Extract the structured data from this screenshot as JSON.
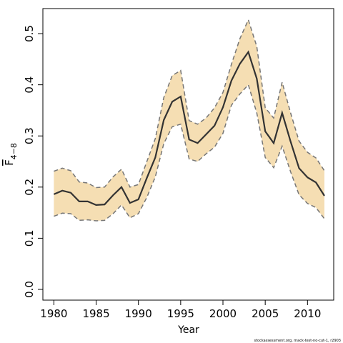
{
  "chart_data": {
    "type": "line",
    "x_label": "Year",
    "y_label": {
      "main": "F",
      "sub": "4−8"
    },
    "footnote": "stockassessment.org, mack-test-no-cut-1, r2903",
    "x": [
      1980,
      1981,
      1982,
      1983,
      1984,
      1985,
      1986,
      1987,
      1988,
      1989,
      1990,
      1991,
      1992,
      1993,
      1994,
      1995,
      1996,
      1997,
      1998,
      1999,
      2000,
      2001,
      2002,
      2003,
      2004,
      2005,
      2006,
      2007,
      2008,
      2009,
      2010,
      2011,
      2012
    ],
    "values": [
      0.186,
      0.193,
      0.189,
      0.172,
      0.172,
      0.165,
      0.166,
      0.184,
      0.2,
      0.169,
      0.176,
      0.218,
      0.258,
      0.331,
      0.367,
      0.377,
      0.293,
      0.286,
      0.303,
      0.32,
      0.356,
      0.408,
      0.441,
      0.464,
      0.412,
      0.309,
      0.286,
      0.345,
      0.289,
      0.237,
      0.219,
      0.209,
      0.183
    ],
    "upper": [
      0.231,
      0.237,
      0.232,
      0.21,
      0.208,
      0.199,
      0.2,
      0.22,
      0.235,
      0.2,
      0.205,
      0.25,
      0.295,
      0.375,
      0.418,
      0.428,
      0.33,
      0.323,
      0.335,
      0.355,
      0.385,
      0.44,
      0.49,
      0.527,
      0.475,
      0.355,
      0.335,
      0.405,
      0.345,
      0.29,
      0.268,
      0.257,
      0.232
    ],
    "lower": [
      0.143,
      0.149,
      0.148,
      0.135,
      0.136,
      0.134,
      0.135,
      0.148,
      0.165,
      0.14,
      0.148,
      0.18,
      0.22,
      0.285,
      0.318,
      0.323,
      0.255,
      0.25,
      0.265,
      0.278,
      0.305,
      0.36,
      0.382,
      0.4,
      0.345,
      0.258,
      0.238,
      0.28,
      0.23,
      0.185,
      0.168,
      0.16,
      0.138
    ],
    "color": "#333333",
    "band_color": "#f5deb3",
    "band_line_color": "#777777",
    "xlim": [
      1978.7,
      2013.1
    ],
    "ylim": [
      -0.021,
      0.549
    ],
    "xticks": [
      1980,
      1985,
      1990,
      1995,
      2000,
      2005,
      2010
    ],
    "yticks": [
      {
        "value": 0,
        "label": "0.0"
      },
      0.1,
      0.2,
      0.3,
      0.4,
      0.5
    ]
  }
}
